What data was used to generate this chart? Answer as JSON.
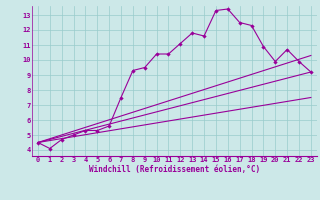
{
  "xlabel": "Windchill (Refroidissement éolien,°C)",
  "bg_color": "#cce8e8",
  "grid_color": "#99cccc",
  "line_color": "#990099",
  "xlim": [
    -0.5,
    23.5
  ],
  "ylim": [
    3.6,
    13.6
  ],
  "xticks": [
    0,
    1,
    2,
    3,
    4,
    5,
    6,
    7,
    8,
    9,
    10,
    11,
    12,
    13,
    14,
    15,
    16,
    17,
    18,
    19,
    20,
    21,
    22,
    23
  ],
  "yticks": [
    4,
    5,
    6,
    7,
    8,
    9,
    10,
    11,
    12,
    13
  ],
  "line1_x": [
    0,
    1,
    2,
    3,
    4,
    5,
    6,
    7,
    8,
    9,
    10,
    11,
    12,
    13,
    14,
    15,
    16,
    17,
    18,
    19,
    20,
    21,
    22,
    23
  ],
  "line1_y": [
    4.5,
    4.1,
    4.7,
    5.0,
    5.3,
    5.3,
    5.6,
    7.5,
    9.3,
    9.5,
    10.4,
    10.4,
    11.1,
    11.8,
    11.6,
    13.3,
    13.4,
    12.5,
    12.3,
    10.9,
    9.9,
    10.7,
    9.9,
    9.2
  ],
  "line2_x": [
    0,
    23
  ],
  "line2_y": [
    4.5,
    9.2
  ],
  "line3_x": [
    0,
    23
  ],
  "line3_y": [
    4.5,
    10.3
  ],
  "line4_x": [
    0,
    23
  ],
  "line4_y": [
    4.5,
    7.5
  ]
}
